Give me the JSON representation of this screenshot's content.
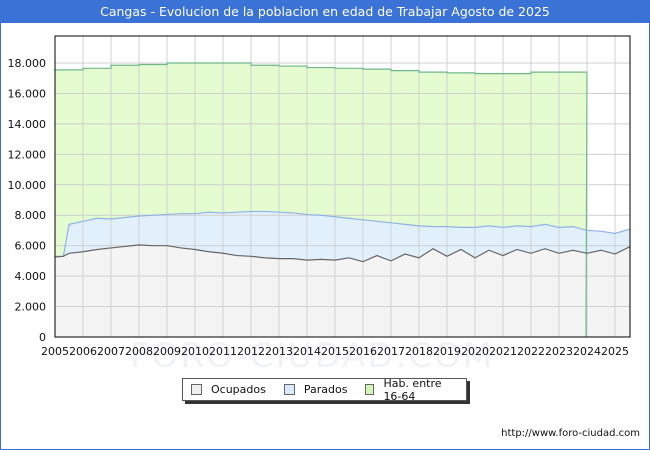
{
  "header": {
    "title": "Cangas - Evolucion de la poblacion en edad de Trabajar Agosto de 2025"
  },
  "footer": {
    "url": "http://www.foro-ciudad.com"
  },
  "watermark": "FORO-CIUDAD.COM",
  "colors": {
    "title_bg": "#3a72d6",
    "hab_fill": "#e5fbd0",
    "hab_line": "#6fb88a",
    "parados_fill": "#e2f0fc",
    "parados_line": "#8fb3e6",
    "ocupados_fill": "#f4f4f4",
    "ocupados_line": "#666666",
    "grid": "#d0d0d0"
  },
  "legend": [
    {
      "label": "Ocupados",
      "color": "#eeeeee"
    },
    {
      "label": "Parados",
      "color": "#d8e9fb"
    },
    {
      "label": "Hab. entre 16-64",
      "color": "#d4f7b8"
    }
  ],
  "chart_data": {
    "type": "area",
    "title": "Cangas - Evolucion de la poblacion en edad de Trabajar Agosto de 2025",
    "xlabel": "",
    "ylabel": "",
    "ylim": [
      0,
      18000
    ],
    "yticks": [
      0,
      2000,
      4000,
      6000,
      8000,
      10000,
      12000,
      14000,
      16000,
      18000
    ],
    "ytick_labels": [
      "0",
      "2.000",
      "4.000",
      "6.000",
      "8.000",
      "10.000",
      "12.000",
      "14.000",
      "16.000",
      "18.000"
    ],
    "xticks": [
      "2005",
      "2006",
      "2007",
      "2008",
      "2009",
      "2010",
      "2011",
      "2012",
      "2013",
      "2014",
      "2015",
      "2016",
      "2017",
      "2018",
      "2019",
      "2020",
      "2021",
      "2022",
      "2023",
      "2024",
      "2025"
    ],
    "xlim": [
      2005,
      2025.6
    ],
    "grid": true,
    "legend_position": "bottom",
    "series": [
      {
        "name": "Hab. entre 16-64",
        "note": "annual step values (Jan-Dec), ends early 2024",
        "years": [
          2005,
          2006,
          2007,
          2008,
          2009,
          2010,
          2011,
          2012,
          2013,
          2014,
          2015,
          2016,
          2017,
          2018,
          2019,
          2020,
          2021,
          2022,
          2023
        ],
        "values": [
          17550,
          17650,
          17850,
          17900,
          18000,
          18000,
          18000,
          17850,
          17800,
          17700,
          17650,
          17600,
          17500,
          17400,
          17350,
          17300,
          17300,
          17400,
          17400
        ]
      },
      {
        "name": "Parados (top of band = Ocupados + Parados)",
        "x": [
          2005.0,
          2005.3,
          2005.5,
          2006.0,
          2006.5,
          2007.0,
          2007.5,
          2008.0,
          2008.5,
          2009.0,
          2009.5,
          2010.0,
          2010.5,
          2011.0,
          2011.5,
          2012.0,
          2012.5,
          2013.0,
          2013.5,
          2014.0,
          2014.5,
          2015.0,
          2015.5,
          2016.0,
          2016.5,
          2017.0,
          2017.5,
          2018.0,
          2018.5,
          2019.0,
          2019.5,
          2020.0,
          2020.5,
          2021.0,
          2021.5,
          2022.0,
          2022.5,
          2023.0,
          2023.5,
          2024.0,
          2024.5,
          2025.0,
          2025.55
        ],
        "values": [
          5300,
          5300,
          7400,
          7600,
          7800,
          7750,
          7850,
          7950,
          8000,
          8050,
          8100,
          8100,
          8200,
          8150,
          8200,
          8250,
          8250,
          8200,
          8150,
          8050,
          8000,
          7900,
          7800,
          7700,
          7600,
          7500,
          7400,
          7300,
          7250,
          7250,
          7200,
          7200,
          7300,
          7200,
          7300,
          7250,
          7400,
          7200,
          7250,
          7000,
          6950,
          6800,
          7100
        ]
      },
      {
        "name": "Ocupados",
        "x": [
          2005.0,
          2005.3,
          2005.5,
          2006.0,
          2006.5,
          2007.0,
          2007.5,
          2008.0,
          2008.5,
          2009.0,
          2009.5,
          2010.0,
          2010.5,
          2011.0,
          2011.5,
          2012.0,
          2012.5,
          2013.0,
          2013.5,
          2014.0,
          2014.5,
          2015.0,
          2015.5,
          2016.0,
          2016.5,
          2017.0,
          2017.5,
          2018.0,
          2018.5,
          2019.0,
          2019.5,
          2020.0,
          2020.5,
          2021.0,
          2021.5,
          2022.0,
          2022.5,
          2023.0,
          2023.5,
          2024.0,
          2024.5,
          2025.0,
          2025.55
        ],
        "values": [
          5250,
          5300,
          5500,
          5600,
          5750,
          5850,
          5950,
          6050,
          6000,
          6000,
          5850,
          5750,
          5600,
          5500,
          5350,
          5300,
          5200,
          5150,
          5150,
          5050,
          5100,
          5050,
          5200,
          4950,
          5350,
          5000,
          5450,
          5200,
          5800,
          5300,
          5750,
          5200,
          5700,
          5350,
          5750,
          5500,
          5800,
          5500,
          5700,
          5500,
          5700,
          5450,
          5950
        ]
      }
    ]
  }
}
